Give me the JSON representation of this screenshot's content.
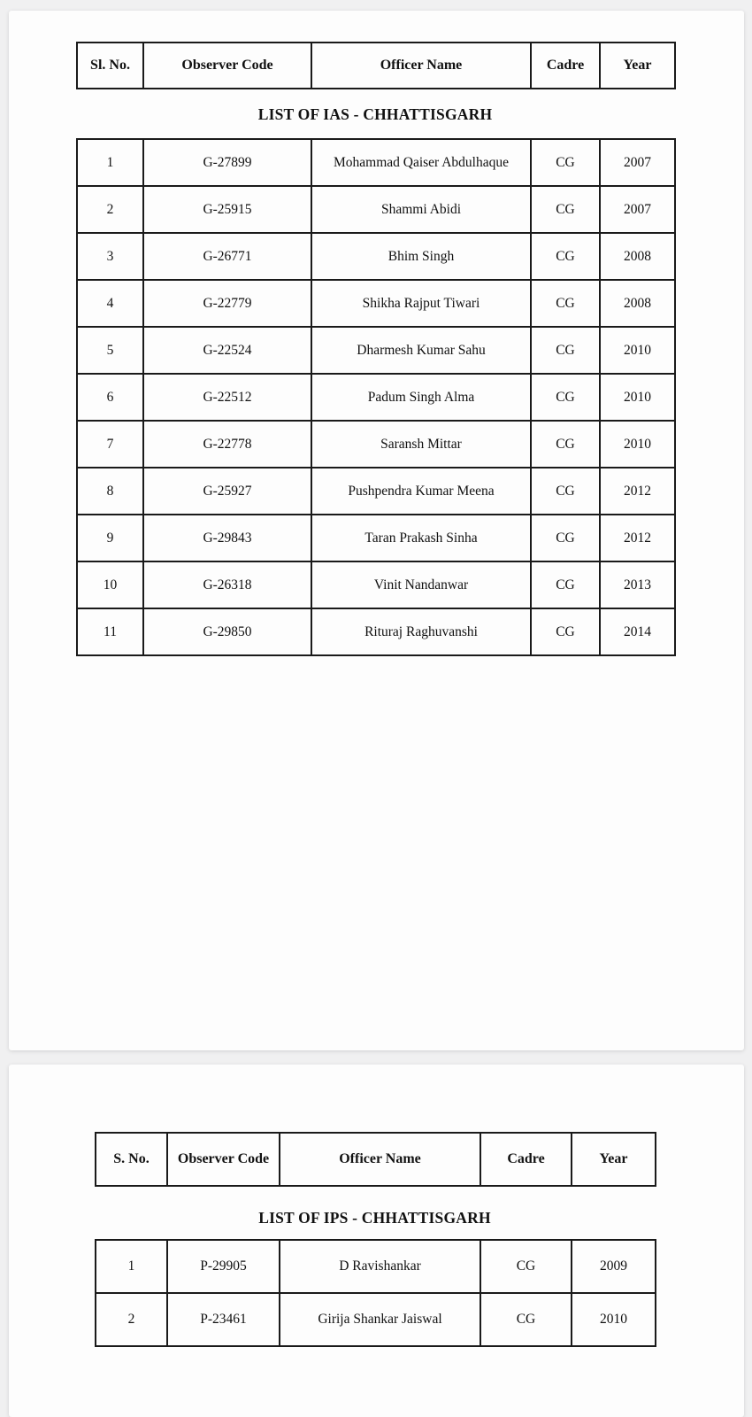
{
  "colors": {
    "canvas_bg": "#f0f0f1",
    "page_bg": "#fdfdfd",
    "table_border": "#1a1a1a",
    "text": "#111111"
  },
  "page1": {
    "header": {
      "columns": [
        "Sl. No.",
        "Observer Code",
        "Officer Name",
        "Cadre",
        "Year"
      ]
    },
    "title": "LIST OF IAS - CHHATTISGARH",
    "rows": [
      [
        "1",
        "G-27899",
        "Mohammad Qaiser Abdulhaque",
        "CG",
        "2007"
      ],
      [
        "2",
        "G-25915",
        "Shammi Abidi",
        "CG",
        "2007"
      ],
      [
        "3",
        "G-26771",
        "Bhim Singh",
        "CG",
        "2008"
      ],
      [
        "4",
        "G-22779",
        "Shikha Rajput Tiwari",
        "CG",
        "2008"
      ],
      [
        "5",
        "G-22524",
        "Dharmesh Kumar Sahu",
        "CG",
        "2010"
      ],
      [
        "6",
        "G-22512",
        "Padum Singh Alma",
        "CG",
        "2010"
      ],
      [
        "7",
        "G-22778",
        "Saransh Mittar",
        "CG",
        "2010"
      ],
      [
        "8",
        "G-25927",
        "Pushpendra Kumar Meena",
        "CG",
        "2012"
      ],
      [
        "9",
        "G-29843",
        "Taran Prakash Sinha",
        "CG",
        "2012"
      ],
      [
        "10",
        "G-26318",
        "Vinit Nandanwar",
        "CG",
        "2013"
      ],
      [
        "11",
        "G-29850",
        "Rituraj Raghuvanshi",
        "CG",
        "2014"
      ]
    ]
  },
  "page2": {
    "header": {
      "columns": [
        "S. No.",
        "Observer Code",
        "Officer Name",
        "Cadre",
        "Year"
      ]
    },
    "title": "LIST OF IPS - CHHATTISGARH",
    "rows": [
      [
        "1",
        "P-29905",
        "D Ravishankar",
        "CG",
        "2009"
      ],
      [
        "2",
        "P-23461",
        "Girija Shankar Jaiswal",
        "CG",
        "2010"
      ]
    ]
  }
}
